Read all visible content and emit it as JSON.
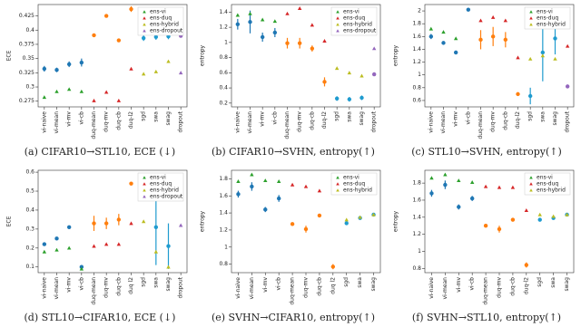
{
  "chart_data": [
    {
      "type": "dot",
      "caption": "(a) CIFAR10→STL10, ECE (↓)",
      "ylabel": "ECE",
      "legend": "upper right",
      "categories": [
        "vi-naive",
        "vi-mean",
        "vi-mv",
        "vi-cb",
        "duq-mean",
        "duq-mv",
        "duq-cb",
        "duq-l2",
        "sgd",
        "swa",
        "swag",
        "dropout"
      ],
      "values": [
        0.332,
        0.33,
        0.34,
        0.343,
        0.391,
        0.425,
        0.382,
        0.437,
        0.386,
        0.388,
        0.389,
        0.39
      ],
      "errors": [
        0.005,
        0.004,
        0.005,
        0.007,
        0.002,
        0.002,
        0.002,
        0.005,
        0.005,
        0.005,
        0.005,
        0.002
      ],
      "point_colors": [
        "#1f77b4",
        "#1f77b4",
        "#1f77b4",
        "#1f77b4",
        "#ff7f0e",
        "#ff7f0e",
        "#ff7f0e",
        "#ff7f0e",
        "#1f9bcf",
        "#1f9bcf",
        "#1f9bcf",
        "#9467bd"
      ],
      "ylim": [
        0.265,
        0.445
      ],
      "yticks": [
        0.275,
        0.3,
        0.325,
        0.35,
        0.375,
        0.4,
        0.425
      ],
      "series": [
        {
          "name": "ens-vi",
          "color": "#2ca02c",
          "values": [
            0.282,
            0.292,
            0.296,
            0.292,
            null,
            null,
            null,
            null,
            null,
            null,
            null,
            null
          ]
        },
        {
          "name": "ens-duq",
          "color": "#d62728",
          "values": [
            null,
            null,
            null,
            null,
            0.276,
            0.291,
            0.276,
            0.332,
            null,
            null,
            null,
            null
          ]
        },
        {
          "name": "ens-hybrid",
          "color": "#bcbd22",
          "values": [
            null,
            null,
            null,
            null,
            null,
            null,
            null,
            null,
            0.323,
            0.327,
            0.345,
            null
          ]
        },
        {
          "name": "ens-dropout",
          "color": "#9467bd",
          "values": [
            null,
            null,
            null,
            null,
            null,
            null,
            null,
            null,
            null,
            null,
            null,
            0.325
          ]
        }
      ]
    },
    {
      "type": "dot",
      "caption": "(b) CIFAR10→SVHN, entropy(↑)",
      "ylabel": "entropy",
      "legend": "upper right",
      "categories": [
        "vi-naive",
        "vi-mean",
        "vi-mv",
        "vi-cb",
        "duq-mean",
        "duq-mv",
        "duq-cb",
        "duq-l2",
        "sgd",
        "swa",
        "swag",
        "dropout"
      ],
      "values": [
        1.24,
        1.27,
        1.07,
        1.13,
        0.99,
        0.99,
        0.92,
        0.48,
        0.26,
        0.25,
        0.27,
        0.58
      ],
      "errors": [
        0.07,
        0.15,
        0.06,
        0.06,
        0.07,
        0.07,
        0.04,
        0.06,
        0.03,
        0.03,
        0.03,
        0.01
      ],
      "point_colors": [
        "#1f77b4",
        "#1f77b4",
        "#1f77b4",
        "#1f77b4",
        "#ff7f0e",
        "#ff7f0e",
        "#ff7f0e",
        "#ff7f0e",
        "#1f9bcf",
        "#1f9bcf",
        "#1f9bcf",
        "#9467bd"
      ],
      "ylim": [
        0.15,
        1.5
      ],
      "yticks": [
        0.2,
        0.4,
        0.6,
        0.8,
        1.0,
        1.2,
        1.4
      ],
      "series": [
        {
          "name": "ens-vi",
          "color": "#2ca02c",
          "values": [
            1.36,
            1.38,
            1.3,
            1.28,
            null,
            null,
            null,
            null,
            null,
            null,
            null,
            null
          ]
        },
        {
          "name": "ens-duq",
          "color": "#d62728",
          "values": [
            null,
            null,
            null,
            null,
            1.38,
            1.45,
            1.23,
            1.02,
            null,
            null,
            null,
            null
          ]
        },
        {
          "name": "ens-hybrid",
          "color": "#bcbd22",
          "values": [
            null,
            null,
            null,
            null,
            null,
            null,
            null,
            null,
            0.66,
            0.6,
            0.56,
            null
          ]
        },
        {
          "name": "ens-dropout",
          "color": "#9467bd",
          "values": [
            null,
            null,
            null,
            null,
            null,
            null,
            null,
            null,
            null,
            null,
            null,
            0.92
          ]
        }
      ]
    },
    {
      "type": "dot",
      "caption": "(c) STL10→SVHN, entropy(↑)",
      "ylabel": "entropy",
      "legend": "upper right",
      "categories": [
        "vi-naive",
        "vi-mean",
        "vi-mv",
        "vi-cb",
        "duq-mean",
        "duq-mv",
        "duq-cb",
        "duq-l2",
        "sgd",
        "swa",
        "swag",
        "dropout"
      ],
      "values": [
        1.6,
        1.5,
        1.35,
        2.02,
        1.55,
        1.6,
        1.55,
        0.7,
        0.67,
        1.35,
        1.57,
        0.82
      ],
      "errors": [
        0.04,
        0.02,
        0.03,
        0.01,
        0.15,
        0.15,
        0.12,
        0.02,
        0.13,
        0.45,
        0.25,
        0.03
      ],
      "point_colors": [
        "#1f77b4",
        "#1f77b4",
        "#1f77b4",
        "#1f77b4",
        "#ff7f0e",
        "#ff7f0e",
        "#ff7f0e",
        "#ff7f0e",
        "#1f9bcf",
        "#1f9bcf",
        "#1f9bcf",
        "#9467bd"
      ],
      "ylim": [
        0.5,
        2.1
      ],
      "yticks": [
        0.6,
        0.8,
        1.0,
        1.2,
        1.4,
        1.6,
        1.8,
        2.0
      ],
      "series": [
        {
          "name": "ens-vi",
          "color": "#2ca02c",
          "values": [
            1.72,
            1.67,
            1.57,
            null,
            null,
            null,
            null,
            null,
            null,
            null,
            null,
            null
          ]
        },
        {
          "name": "ens-duq",
          "color": "#d62728",
          "values": [
            null,
            null,
            null,
            null,
            1.85,
            1.9,
            1.85,
            1.27,
            null,
            null,
            null,
            1.45
          ]
        },
        {
          "name": "ens-hybrid",
          "color": "#bcbd22",
          "values": [
            null,
            null,
            null,
            null,
            null,
            null,
            null,
            null,
            1.25,
            1.3,
            1.25,
            null
          ]
        }
      ]
    },
    {
      "type": "dot",
      "caption": "(d) STL10→CIFAR10, ECE (↓)",
      "ylabel": "ECE",
      "legend": "upper right",
      "categories": [
        "vi-naive",
        "vi-mean",
        "vi-mv",
        "vi-cb",
        "duq-mean",
        "duq-mv",
        "duq-cb",
        "duq l2",
        "sgd",
        "swa",
        "swag",
        "dropout"
      ],
      "values": [
        0.22,
        0.25,
        0.31,
        0.1,
        0.33,
        0.33,
        0.35,
        0.54,
        0.56,
        0.31,
        0.21,
        0.46
      ],
      "errors": [
        0.005,
        0.005,
        0.005,
        0.01,
        0.04,
        0.03,
        0.03,
        0.005,
        0.02,
        0.2,
        0.12,
        0.005
      ],
      "point_colors": [
        "#1f77b4",
        "#1f77b4",
        "#1f77b4",
        "#1f77b4",
        "#ff7f0e",
        "#ff7f0e",
        "#ff7f0e",
        "#ff7f0e",
        "#1f9bcf",
        "#1f9bcf",
        "#1f9bcf",
        "#9467bd"
      ],
      "ylim": [
        0.07,
        0.61
      ],
      "yticks": [
        0.1,
        0.2,
        0.3,
        0.4,
        0.5,
        0.6
      ],
      "series": [
        {
          "name": "ens-vi",
          "color": "#2ca02c",
          "values": [
            0.18,
            0.19,
            0.2,
            0.09,
            null,
            null,
            null,
            null,
            null,
            null,
            null,
            null
          ]
        },
        {
          "name": "ens-duq",
          "color": "#d62728",
          "values": [
            null,
            null,
            null,
            null,
            0.21,
            0.22,
            0.22,
            0.33,
            null,
            null,
            null,
            null
          ]
        },
        {
          "name": "ens-hybrid",
          "color": "#bcbd22",
          "values": [
            null,
            null,
            null,
            null,
            null,
            null,
            null,
            null,
            0.34,
            0.18,
            0.1,
            null
          ]
        },
        {
          "name": "ens-dropout",
          "color": "#9467bd",
          "values": [
            null,
            null,
            null,
            null,
            null,
            null,
            null,
            null,
            null,
            null,
            null,
            0.32
          ]
        }
      ]
    },
    {
      "type": "dot",
      "caption": "(e) SVHN→CIFAR10, entropy(↑)",
      "ylabel": "entropy",
      "legend": "upper right",
      "categories": [
        "vi-naive",
        "vi-mean",
        "vi-mv",
        "vi-cb",
        "duq-mean",
        "duq-mv",
        "duq-cb",
        "duq l2",
        "sgd",
        "swa",
        "swag"
      ],
      "values": [
        1.62,
        1.71,
        1.44,
        1.57,
        1.27,
        1.21,
        1.37,
        0.77,
        1.28,
        1.34,
        1.38
      ],
      "errors": [
        0.04,
        0.05,
        0.03,
        0.04,
        0.02,
        0.04,
        0.02,
        0.03,
        0.02,
        0.01,
        0.01
      ],
      "point_colors": [
        "#1f77b4",
        "#1f77b4",
        "#1f77b4",
        "#1f77b4",
        "#ff7f0e",
        "#ff7f0e",
        "#ff7f0e",
        "#ff7f0e",
        "#1f9bcf",
        "#1f9bcf",
        "#1f9bcf"
      ],
      "ylim": [
        0.7,
        1.9
      ],
      "yticks": [
        0.8,
        1.0,
        1.2,
        1.4,
        1.6,
        1.8
      ],
      "series": [
        {
          "name": "ens-vi",
          "color": "#2ca02c",
          "values": [
            1.77,
            1.85,
            1.78,
            1.77,
            null,
            null,
            null,
            null,
            null,
            null,
            null
          ]
        },
        {
          "name": "ens-duq",
          "color": "#d62728",
          "values": [
            null,
            null,
            null,
            null,
            1.73,
            1.71,
            1.66,
            1.8,
            null,
            null,
            null
          ]
        },
        {
          "name": "ens-hybrid",
          "color": "#bcbd22",
          "values": [
            null,
            null,
            null,
            null,
            null,
            null,
            null,
            null,
            1.32,
            1.35,
            1.38
          ]
        }
      ]
    },
    {
      "type": "dot",
      "caption": "(f) SVHN→STL10, entropy(↑)",
      "ylabel": "entropy",
      "legend": "upper right",
      "categories": [
        "vi-naive",
        "vi-mean",
        "vi-mv",
        "vi-cb",
        "duq-mean",
        "duq-mv",
        "duq-cb",
        "duq-l2",
        "sgd",
        "swa",
        "swag"
      ],
      "values": [
        1.68,
        1.78,
        1.52,
        1.62,
        1.3,
        1.26,
        1.37,
        0.84,
        1.37,
        1.39,
        1.43
      ],
      "errors": [
        0.04,
        0.05,
        0.03,
        0.03,
        0.02,
        0.04,
        0.02,
        0.03,
        0.02,
        0.01,
        0.01
      ],
      "point_colors": [
        "#1f77b4",
        "#1f77b4",
        "#1f77b4",
        "#1f77b4",
        "#ff7f0e",
        "#ff7f0e",
        "#ff7f0e",
        "#ff7f0e",
        "#1f9bcf",
        "#1f9bcf",
        "#1f9bcf"
      ],
      "ylim": [
        0.75,
        1.95
      ],
      "yticks": [
        0.8,
        1.0,
        1.2,
        1.4,
        1.6,
        1.8
      ],
      "series": [
        {
          "name": "ens-vi",
          "color": "#2ca02c",
          "values": [
            1.86,
            1.9,
            1.83,
            1.81,
            null,
            null,
            null,
            null,
            null,
            null,
            null
          ]
        },
        {
          "name": "ens-duq",
          "color": "#d62728",
          "values": [
            null,
            null,
            null,
            null,
            1.76,
            1.75,
            1.75,
            1.48,
            null,
            null,
            null
          ]
        },
        {
          "name": "ens-hybrid",
          "color": "#bcbd22",
          "values": [
            null,
            null,
            null,
            null,
            null,
            null,
            null,
            null,
            1.43,
            1.41,
            1.43
          ]
        }
      ]
    }
  ]
}
